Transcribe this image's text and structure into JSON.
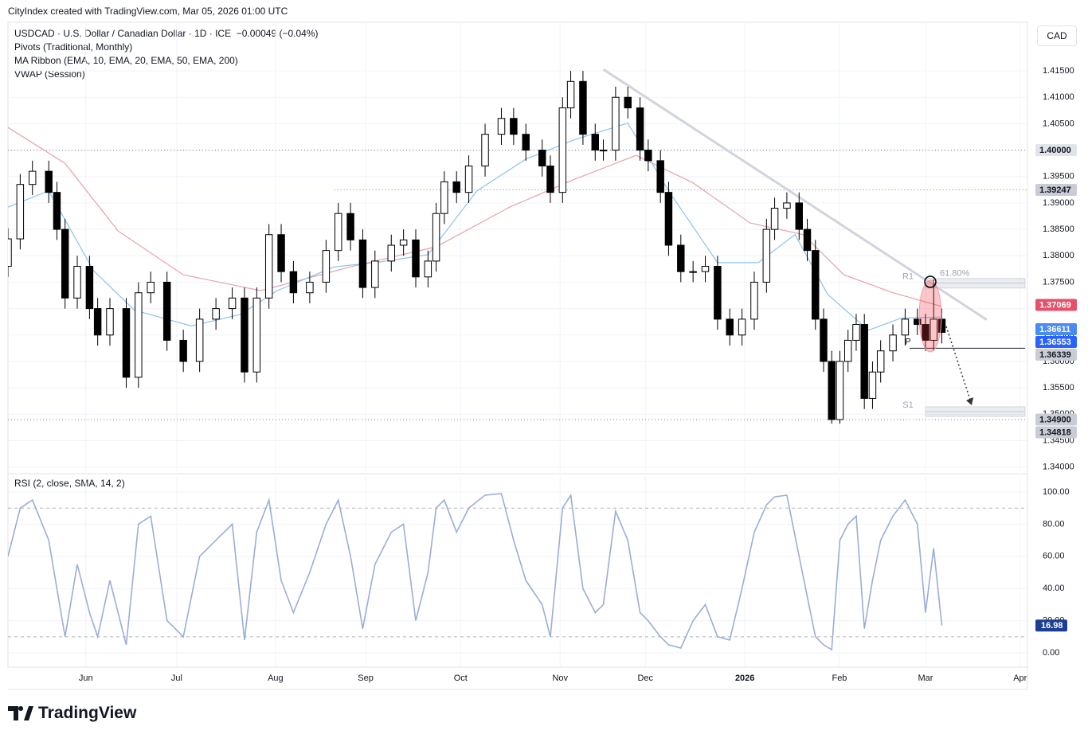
{
  "header": {
    "attribution": "CityIndex created with TradingView.com, Mar 05, 2026 01:00 UTC",
    "symbol": "USDCAD · U.S. Dollar / Canadian Dollar · 1D · ICE",
    "change": "−0.00049 (−0.04%)",
    "indicators": [
      "Pivots (Traditional, Monthly)",
      "MA Ribbon (EMA, 10, EMA, 20, EMA, 50, EMA, 200)",
      "VWAP (Session)"
    ],
    "currency": "CAD",
    "logo": "TradingView"
  },
  "chart_data": [
    {
      "type": "candlestick",
      "x": [
        0,
        3,
        6,
        10,
        12,
        14,
        17,
        20,
        22,
        25,
        29,
        32,
        35,
        39,
        43,
        47,
        51,
        55,
        58,
        61,
        64,
        67,
        70,
        74,
        78,
        81,
        84,
        87,
        90,
        94,
        97,
        100,
        103,
        105,
        107,
        110,
        113,
        117,
        121,
        124,
        127,
        131,
        133,
        136,
        138,
        141,
        144,
        146,
        149,
        152,
        155,
        157,
        160,
        162,
        165,
        168,
        171,
        174,
        177,
        180,
        183,
        186,
        188,
        191,
        194,
        196,
        198,
        200,
        202,
        204,
        206,
        208,
        210,
        212,
        214,
        217,
        220,
        223,
        225,
        227,
        229
      ],
      "open": [
        1.378,
        1.3832,
        1.3935,
        1.396,
        1.392,
        1.385,
        1.372,
        1.378,
        1.37,
        1.365,
        1.37,
        1.357,
        1.373,
        1.375,
        1.364,
        1.36,
        1.368,
        1.37,
        1.372,
        1.358,
        1.372,
        1.384,
        1.377,
        1.373,
        1.375,
        1.381,
        1.388,
        1.383,
        1.374,
        1.379,
        1.382,
        1.383,
        1.376,
        1.379,
        1.388,
        1.394,
        1.392,
        1.397,
        1.403,
        1.406,
        1.403,
        1.4,
        1.397,
        1.392,
        1.408,
        1.413,
        1.403,
        1.4,
        1.4,
        1.41,
        1.408,
        1.4,
        1.398,
        1.392,
        1.382,
        1.377,
        1.377,
        1.378,
        1.368,
        1.365,
        1.368,
        1.375,
        1.385,
        1.389,
        1.39,
        1.385,
        1.381,
        1.368,
        1.36,
        1.349,
        1.36,
        1.364,
        1.367,
        1.353,
        1.358,
        1.362,
        1.365,
        1.368,
        1.367,
        1.364,
        1.368
      ],
      "high": [
        1.3852,
        1.3955,
        1.398,
        1.398,
        1.394,
        1.387,
        1.38,
        1.38,
        1.372,
        1.372,
        1.372,
        1.375,
        1.377,
        1.377,
        1.366,
        1.37,
        1.372,
        1.374,
        1.374,
        1.374,
        1.386,
        1.386,
        1.379,
        1.377,
        1.383,
        1.39,
        1.39,
        1.385,
        1.381,
        1.384,
        1.385,
        1.385,
        1.381,
        1.39,
        1.396,
        1.396,
        1.399,
        1.405,
        1.408,
        1.408,
        1.405,
        1.402,
        1.399,
        1.41,
        1.415,
        1.415,
        1.405,
        1.402,
        1.412,
        1.412,
        1.41,
        1.402,
        1.4,
        1.394,
        1.384,
        1.379,
        1.38,
        1.38,
        1.37,
        1.37,
        1.377,
        1.387,
        1.391,
        1.392,
        1.392,
        1.387,
        1.383,
        1.37,
        1.362,
        1.362,
        1.366,
        1.369,
        1.369,
        1.36,
        1.364,
        1.367,
        1.37,
        1.37,
        1.369,
        1.3755,
        1.37
      ],
      "low": [
        1.376,
        1.3812,
        1.3915,
        1.39,
        1.383,
        1.37,
        1.37,
        1.368,
        1.363,
        1.363,
        1.355,
        1.355,
        1.371,
        1.362,
        1.358,
        1.358,
        1.366,
        1.368,
        1.356,
        1.356,
        1.37,
        1.375,
        1.371,
        1.371,
        1.373,
        1.379,
        1.381,
        1.372,
        1.372,
        1.377,
        1.38,
        1.374,
        1.374,
        1.377,
        1.386,
        1.39,
        1.39,
        1.395,
        1.401,
        1.401,
        1.398,
        1.395,
        1.39,
        1.39,
        1.406,
        1.401,
        1.398,
        1.398,
        1.398,
        1.406,
        1.398,
        1.396,
        1.39,
        1.38,
        1.375,
        1.375,
        1.375,
        1.366,
        1.363,
        1.363,
        1.366,
        1.373,
        1.383,
        1.387,
        1.383,
        1.379,
        1.366,
        1.358,
        1.3482,
        1.3482,
        1.358,
        1.362,
        1.351,
        1.351,
        1.356,
        1.36,
        1.363,
        1.365,
        1.362,
        1.362,
        1.3634
      ],
      "close": [
        1.3832,
        1.3935,
        1.396,
        1.392,
        1.385,
        1.372,
        1.378,
        1.37,
        1.365,
        1.37,
        1.357,
        1.373,
        1.375,
        1.364,
        1.36,
        1.368,
        1.37,
        1.372,
        1.358,
        1.372,
        1.384,
        1.377,
        1.373,
        1.375,
        1.381,
        1.388,
        1.383,
        1.374,
        1.379,
        1.382,
        1.383,
        1.376,
        1.379,
        1.388,
        1.394,
        1.392,
        1.397,
        1.403,
        1.406,
        1.403,
        1.4,
        1.397,
        1.392,
        1.408,
        1.413,
        1.403,
        1.4,
        1.4,
        1.41,
        1.408,
        1.4,
        1.398,
        1.392,
        1.382,
        1.377,
        1.377,
        1.378,
        1.368,
        1.365,
        1.368,
        1.375,
        1.385,
        1.389,
        1.39,
        1.385,
        1.381,
        1.368,
        1.36,
        1.349,
        1.36,
        1.364,
        1.367,
        1.353,
        1.358,
        1.362,
        1.365,
        1.368,
        1.367,
        1.364,
        1.368,
        1.3655
      ],
      "up_color": "#ffffff",
      "down_color": "#000000",
      "xlim": [
        0,
        250
      ],
      "xticks": [
        {
          "value": 19.1,
          "label": "Jun"
        },
        {
          "value": 41.4,
          "label": "Jul"
        },
        {
          "value": 65.6,
          "label": "Aug"
        },
        {
          "value": 87.7,
          "label": "Sep"
        },
        {
          "value": 111,
          "label": "Oct"
        },
        {
          "value": 135.4,
          "label": "Nov"
        },
        {
          "value": 156.3,
          "label": "Dec"
        },
        {
          "value": 180.7,
          "label": "2026",
          "bold": true
        },
        {
          "value": 203.9,
          "label": "Feb"
        },
        {
          "value": 225,
          "label": "Mar"
        },
        {
          "value": 248.2,
          "label": "Apr"
        }
      ],
      "ylim": [
        1.3392,
        1.4242
      ],
      "yticks": [
        {
          "value": 1.34,
          "label": "1.34000"
        },
        {
          "value": 1.345,
          "label": "1.34500"
        },
        {
          "value": 1.35,
          "label": "1.35000"
        },
        {
          "value": 1.355,
          "label": "1.35500"
        },
        {
          "value": 1.36,
          "label": "1.36000"
        },
        {
          "value": 1.365,
          "label": "1.36500"
        },
        {
          "value": 1.37,
          "label": "1.37000"
        },
        {
          "value": 1.375,
          "label": "1.37500"
        },
        {
          "value": 1.38,
          "label": "1.38000"
        },
        {
          "value": 1.385,
          "label": "1.38500"
        },
        {
          "value": 1.39,
          "label": "1.39000"
        },
        {
          "value": 1.395,
          "label": "1.39500"
        },
        {
          "value": 1.4,
          "label": "1.40000"
        },
        {
          "value": 1.405,
          "label": "1.40500"
        },
        {
          "value": 1.41,
          "label": "1.41000"
        },
        {
          "value": 1.415,
          "label": "1.41500"
        }
      ],
      "grid": true,
      "lines": [
        {
          "color": "#e8a1a8",
          "x": [
            0,
            14,
            27,
            43,
            62,
            84,
            105,
            123,
            139,
            154,
            168,
            182,
            195,
            205,
            217,
            229
          ],
          "values": [
            1.4043,
            1.3975,
            1.3847,
            1.3764,
            1.3734,
            1.3779,
            1.3817,
            1.3892,
            1.3945,
            1.399,
            1.3938,
            1.3862,
            1.384,
            1.3764,
            1.373,
            1.3704
          ]
        },
        {
          "color": "#8ec3ea",
          "x": [
            0,
            10,
            21,
            31,
            45,
            57,
            66,
            80,
            90,
            103,
            115,
            127,
            139,
            152,
            162,
            174,
            184,
            193,
            201,
            211,
            219,
            229
          ],
          "values": [
            1.3892,
            1.3923,
            1.3772,
            1.3697,
            1.3667,
            1.3689,
            1.3734,
            1.3779,
            1.3787,
            1.3802,
            1.3923,
            1.3983,
            1.402,
            1.4051,
            1.3923,
            1.3787,
            1.3787,
            1.384,
            1.3727,
            1.3659,
            1.3682,
            1.3684
          ]
        }
      ],
      "trendline": {
        "color": "#d1d4dc",
        "x": [
          146,
          240
        ],
        "values": [
          1.4153,
          1.3679
        ]
      },
      "pivots": [
        {
          "label": "R1",
          "value": 1.3748,
          "shade": true
        },
        {
          "label": "P",
          "value": 1.3625
        },
        {
          "label": "S1",
          "value": 1.3505,
          "shade": true
        }
      ],
      "fib_label": {
        "label": "61.80%",
        "value": 1.3759
      },
      "price_labels": [
        {
          "value": 1.4,
          "label": "1.40000",
          "color": "#e0e3eb",
          "text_color": "#131722",
          "dotted": true,
          "from_x": 0
        },
        {
          "value": 1.39247,
          "color": "#c9ccd4",
          "text_color": "#131722",
          "dotted": true,
          "from_x": 80
        },
        {
          "value": 1.37069,
          "color": "#e5506a",
          "text_color": "#ffffff"
        },
        {
          "value": 1.36611,
          "color": "#4a8af4",
          "text_color": "#ffffff"
        },
        {
          "value": 1.36553,
          "color": "#2962ff",
          "text_color": "#ffffff"
        },
        {
          "value": 1.36339,
          "color": "#c9ccd4",
          "text_color": "#131722"
        },
        {
          "value": 1.349,
          "label": "1.34900",
          "color": "#c9ccd4",
          "text_color": "#131722",
          "dotted": true,
          "from_x": 0
        },
        {
          "value": 1.34818,
          "color": "#c9ccd4",
          "text_color": "#131722"
        }
      ]
    },
    {
      "type": "line",
      "title": "RSI (2, close, SMA, 14, 2)",
      "x": [
        0,
        3,
        6,
        10,
        12,
        14,
        17,
        20,
        22,
        25,
        29,
        32,
        35,
        39,
        43,
        47,
        51,
        55,
        58,
        61,
        64,
        67,
        70,
        74,
        78,
        81,
        84,
        87,
        90,
        94,
        97,
        100,
        103,
        105,
        107,
        110,
        113,
        117,
        121,
        124,
        127,
        131,
        133,
        136,
        138,
        141,
        144,
        146,
        149,
        152,
        155,
        157,
        160,
        162,
        165,
        168,
        171,
        174,
        177,
        180,
        183,
        186,
        188,
        191,
        194,
        196,
        198,
        200,
        202,
        204,
        206,
        208,
        210,
        212,
        214,
        217,
        220,
        223,
        225,
        227,
        229
      ],
      "values": [
        60,
        90,
        95,
        70,
        40,
        10,
        55,
        25,
        10,
        45,
        5,
        80,
        85,
        20,
        10,
        60,
        70,
        80,
        8,
        75,
        95,
        45,
        25,
        50,
        80,
        95,
        60,
        15,
        55,
        75,
        80,
        20,
        50,
        90,
        95,
        75,
        90,
        98,
        99,
        70,
        45,
        30,
        10,
        90,
        98,
        40,
        25,
        30,
        88,
        70,
        25,
        20,
        10,
        5,
        3,
        20,
        30,
        10,
        8,
        40,
        75,
        92,
        97,
        98,
        60,
        35,
        10,
        5,
        2,
        70,
        80,
        85,
        15,
        45,
        70,
        85,
        95,
        80,
        25,
        65,
        16.98
      ],
      "color": "#9badd6",
      "last_color": "#1c3f94",
      "xlim": [
        0,
        250
      ],
      "ylim": [
        -8.9,
        109.9
      ],
      "yticks": [
        {
          "value": 0,
          "label": "0.00"
        },
        {
          "value": 20,
          "label": "20.00"
        },
        {
          "value": 40,
          "label": "40.00"
        },
        {
          "value": 60,
          "label": "60.00"
        },
        {
          "value": 80,
          "label": "80.00"
        },
        {
          "value": 100,
          "label": "100.00"
        }
      ],
      "hlines": [
        90,
        10
      ],
      "grid": true
    }
  ]
}
